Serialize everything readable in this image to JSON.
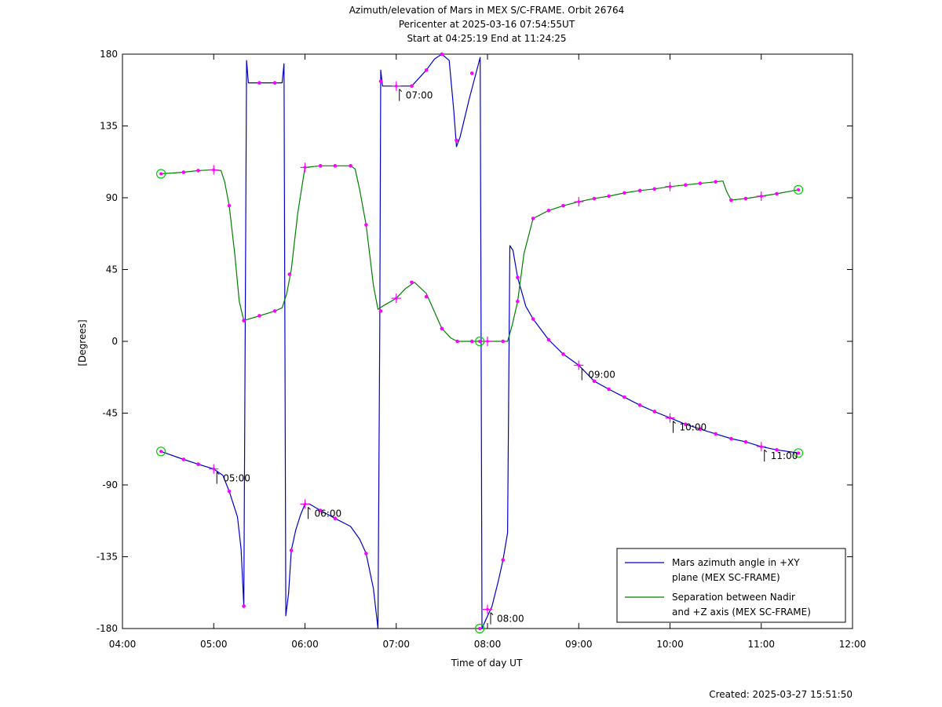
{
  "chart_data": {
    "type": "line",
    "title": [
      "Azimuth/elevation of Mars in MEX S/C-FRAME.  Orbit 26764",
      "Pericenter at 2025-03-16 07:54:55UT",
      "Start at 04:25:19 End at 11:24:25"
    ],
    "xlabel": "Time of day UT",
    "ylabel": "[Degrees]",
    "xlim": [
      4.0,
      12.0
    ],
    "ylim": [
      -180,
      180
    ],
    "x_ticks": [
      {
        "v": 4,
        "label": "04:00"
      },
      {
        "v": 5,
        "label": "05:00"
      },
      {
        "v": 6,
        "label": "06:00"
      },
      {
        "v": 7,
        "label": "07:00"
      },
      {
        "v": 8,
        "label": "08:00"
      },
      {
        "v": 9,
        "label": "09:00"
      },
      {
        "v": 10,
        "label": "10:00"
      },
      {
        "v": 11,
        "label": "11:00"
      },
      {
        "v": 12,
        "label": "12:00"
      }
    ],
    "y_ticks": [
      {
        "v": 180,
        "label": "180"
      },
      {
        "v": 135,
        "label": "135"
      },
      {
        "v": 90,
        "label": "90"
      },
      {
        "v": 45,
        "label": "45"
      },
      {
        "v": 0,
        "label": "0"
      },
      {
        "v": -45,
        "label": "-45"
      },
      {
        "v": -90,
        "label": "-90"
      },
      {
        "v": -135,
        "label": "-135"
      },
      {
        "v": -180,
        "label": "-180"
      }
    ],
    "legend": {
      "placement": "bottom-right",
      "entries": [
        {
          "lines": [
            "Mars azimuth angle in +XY",
            "plane (MEX SC-FRAME)"
          ],
          "color": "#0000cc"
        },
        {
          "lines": [
            "Separation between Nadir",
            "and +Z axis (MEX SC-FRAME)"
          ],
          "color": "#008000"
        }
      ]
    },
    "series": [
      {
        "color": "#0000cc",
        "points": [
          [
            4.422,
            -69
          ],
          [
            4.67,
            -74
          ],
          [
            4.83,
            -77
          ],
          [
            5.0,
            -80
          ],
          [
            5.1,
            -84
          ],
          [
            5.17,
            -94
          ],
          [
            5.26,
            -110
          ],
          [
            5.3,
            -130
          ],
          [
            5.33,
            -166
          ],
          [
            5.345,
            10
          ],
          [
            5.36,
            176
          ],
          [
            5.38,
            162
          ],
          [
            5.5,
            162
          ],
          [
            5.67,
            162
          ],
          [
            5.75,
            162
          ],
          [
            5.77,
            174
          ],
          [
            5.78,
            10
          ],
          [
            5.79,
            -172
          ],
          [
            5.82,
            -158
          ],
          [
            5.85,
            -131
          ],
          [
            5.9,
            -118
          ],
          [
            5.95,
            -109
          ],
          [
            6.0,
            -102
          ],
          [
            6.05,
            -102
          ],
          [
            6.17,
            -106
          ],
          [
            6.33,
            -111
          ],
          [
            6.5,
            -116
          ],
          [
            6.6,
            -124
          ],
          [
            6.67,
            -133
          ],
          [
            6.75,
            -155
          ],
          [
            6.8,
            -180
          ],
          [
            6.82,
            10
          ],
          [
            6.83,
            170
          ],
          [
            6.85,
            160
          ],
          [
            7.0,
            160
          ],
          [
            7.17,
            160
          ],
          [
            7.33,
            170
          ],
          [
            7.42,
            177
          ],
          [
            7.5,
            180
          ],
          [
            7.58,
            176
          ],
          [
            7.63,
            145
          ],
          [
            7.66,
            122
          ],
          [
            7.7,
            128
          ],
          [
            7.8,
            152
          ],
          [
            7.92,
            178
          ],
          [
            7.93,
            0
          ],
          [
            7.94,
            -180
          ],
          [
            7.97,
            -176
          ],
          [
            8.05,
            -166
          ],
          [
            8.12,
            -150
          ],
          [
            8.17,
            -137
          ],
          [
            8.22,
            -120
          ],
          [
            8.245,
            60
          ],
          [
            8.28,
            57
          ],
          [
            8.33,
            40
          ],
          [
            8.42,
            22
          ],
          [
            8.5,
            14
          ],
          [
            8.67,
            1
          ],
          [
            8.83,
            -8
          ],
          [
            9.0,
            -15
          ],
          [
            9.17,
            -25
          ],
          [
            9.33,
            -30
          ],
          [
            9.5,
            -35
          ],
          [
            9.67,
            -40
          ],
          [
            9.83,
            -44
          ],
          [
            10.0,
            -48
          ],
          [
            10.17,
            -52
          ],
          [
            10.33,
            -55
          ],
          [
            10.5,
            -58
          ],
          [
            10.67,
            -61
          ],
          [
            10.83,
            -63
          ],
          [
            11.0,
            -66
          ],
          [
            11.17,
            -68
          ],
          [
            11.407,
            -70
          ]
        ],
        "markers": [
          {
            "x": 4.422,
            "y": -69,
            "type": "circle"
          },
          {
            "x": 4.67,
            "y": -74,
            "type": "dot"
          },
          {
            "x": 4.83,
            "y": -77,
            "type": "dot"
          },
          {
            "x": 5.0,
            "y": -80,
            "type": "plus"
          },
          {
            "x": 5.17,
            "y": -94,
            "type": "dot"
          },
          {
            "x": 5.33,
            "y": -166,
            "type": "dot"
          },
          {
            "x": 5.5,
            "y": 162,
            "type": "dot"
          },
          {
            "x": 5.67,
            "y": 162,
            "type": "dot"
          },
          {
            "x": 5.85,
            "y": -131,
            "type": "dot"
          },
          {
            "x": 6.0,
            "y": -102,
            "type": "plus"
          },
          {
            "x": 6.17,
            "y": -106,
            "type": "dot"
          },
          {
            "x": 6.33,
            "y": -111,
            "type": "dot"
          },
          {
            "x": 6.67,
            "y": -133,
            "type": "dot"
          },
          {
            "x": 6.83,
            "y": 163,
            "type": "dot"
          },
          {
            "x": 7.0,
            "y": 160,
            "type": "plus"
          },
          {
            "x": 7.17,
            "y": 160,
            "type": "dot"
          },
          {
            "x": 7.33,
            "y": 170,
            "type": "dot"
          },
          {
            "x": 7.5,
            "y": 180,
            "type": "dot"
          },
          {
            "x": 7.66,
            "y": 126,
            "type": "dot"
          },
          {
            "x": 7.83,
            "y": 168,
            "type": "dot"
          },
          {
            "x": 7.915,
            "y": -180,
            "type": "circle"
          },
          {
            "x": 8.0,
            "y": -168,
            "type": "plus"
          },
          {
            "x": 8.17,
            "y": -137,
            "type": "dot"
          },
          {
            "x": 8.33,
            "y": 40,
            "type": "dot"
          },
          {
            "x": 8.5,
            "y": 14,
            "type": "dot"
          },
          {
            "x": 8.67,
            "y": 1,
            "type": "dot"
          },
          {
            "x": 8.83,
            "y": -8,
            "type": "dot"
          },
          {
            "x": 9.0,
            "y": -15,
            "type": "plus"
          },
          {
            "x": 9.17,
            "y": -25,
            "type": "dot"
          },
          {
            "x": 9.33,
            "y": -30,
            "type": "dot"
          },
          {
            "x": 9.5,
            "y": -35,
            "type": "dot"
          },
          {
            "x": 9.67,
            "y": -40,
            "type": "dot"
          },
          {
            "x": 9.83,
            "y": -44,
            "type": "dot"
          },
          {
            "x": 10.0,
            "y": -48,
            "type": "plus"
          },
          {
            "x": 10.17,
            "y": -52,
            "type": "dot"
          },
          {
            "x": 10.33,
            "y": -55,
            "type": "dot"
          },
          {
            "x": 10.5,
            "y": -58,
            "type": "dot"
          },
          {
            "x": 10.67,
            "y": -61,
            "type": "dot"
          },
          {
            "x": 10.83,
            "y": -63,
            "type": "dot"
          },
          {
            "x": 11.0,
            "y": -66,
            "type": "plus"
          },
          {
            "x": 11.17,
            "y": -68,
            "type": "dot"
          },
          {
            "x": 11.407,
            "y": -70,
            "type": "circle"
          }
        ],
        "time_labels": [
          {
            "x": 5.0,
            "y": -80,
            "label": "05:00"
          },
          {
            "x": 6.0,
            "y": -102,
            "label": "06:00"
          },
          {
            "x": 7.0,
            "y": 160,
            "label": "07:00"
          },
          {
            "x": 8.0,
            "y": -168,
            "label": "08:00"
          },
          {
            "x": 9.0,
            "y": -15,
            "label": "09:00"
          },
          {
            "x": 10.0,
            "y": -48,
            "label": "10:00"
          },
          {
            "x": 11.0,
            "y": -66,
            "label": "11:00"
          }
        ]
      },
      {
        "color": "#008000",
        "points": [
          [
            4.422,
            105
          ],
          [
            4.67,
            106
          ],
          [
            4.83,
            107
          ],
          [
            5.0,
            107.5
          ],
          [
            5.08,
            107
          ],
          [
            5.12,
            100
          ],
          [
            5.17,
            85
          ],
          [
            5.23,
            55
          ],
          [
            5.28,
            25
          ],
          [
            5.33,
            13
          ],
          [
            5.5,
            16
          ],
          [
            5.67,
            19
          ],
          [
            5.75,
            21
          ],
          [
            5.8,
            30
          ],
          [
            5.85,
            45
          ],
          [
            5.92,
            80
          ],
          [
            6.0,
            109
          ],
          [
            6.17,
            110
          ],
          [
            6.33,
            110
          ],
          [
            6.5,
            110
          ],
          [
            6.55,
            108
          ],
          [
            6.6,
            95
          ],
          [
            6.67,
            73
          ],
          [
            6.75,
            35
          ],
          [
            6.8,
            20
          ],
          [
            6.85,
            22
          ],
          [
            7.0,
            27
          ],
          [
            7.1,
            33
          ],
          [
            7.2,
            37
          ],
          [
            7.33,
            30
          ],
          [
            7.5,
            8
          ],
          [
            7.6,
            2
          ],
          [
            7.67,
            0
          ],
          [
            7.83,
            0
          ],
          [
            7.915,
            0
          ],
          [
            8.0,
            0
          ],
          [
            8.17,
            0
          ],
          [
            8.22,
            0
          ],
          [
            8.27,
            10
          ],
          [
            8.33,
            25
          ],
          [
            8.4,
            55
          ],
          [
            8.5,
            77
          ],
          [
            8.67,
            82
          ],
          [
            8.83,
            85
          ],
          [
            9.0,
            87.5
          ],
          [
            9.17,
            89.5
          ],
          [
            9.33,
            91
          ],
          [
            9.5,
            93
          ],
          [
            9.67,
            94.5
          ],
          [
            9.83,
            95.5
          ],
          [
            10.0,
            97
          ],
          [
            10.17,
            98
          ],
          [
            10.33,
            99
          ],
          [
            10.5,
            100
          ],
          [
            10.58,
            100.5
          ],
          [
            10.62,
            94
          ],
          [
            10.67,
            88.5
          ],
          [
            10.83,
            89.5
          ],
          [
            11.0,
            91
          ],
          [
            11.17,
            92.5
          ],
          [
            11.407,
            95
          ]
        ],
        "markers": [
          {
            "x": 4.422,
            "y": 105,
            "type": "circle"
          },
          {
            "x": 4.67,
            "y": 106,
            "type": "dot"
          },
          {
            "x": 4.83,
            "y": 107,
            "type": "dot"
          },
          {
            "x": 5.0,
            "y": 107.5,
            "type": "plus"
          },
          {
            "x": 5.17,
            "y": 85,
            "type": "dot"
          },
          {
            "x": 5.33,
            "y": 13,
            "type": "dot"
          },
          {
            "x": 5.5,
            "y": 16,
            "type": "dot"
          },
          {
            "x": 5.67,
            "y": 19,
            "type": "dot"
          },
          {
            "x": 5.83,
            "y": 42,
            "type": "dot"
          },
          {
            "x": 6.0,
            "y": 109,
            "type": "plus"
          },
          {
            "x": 6.17,
            "y": 110,
            "type": "dot"
          },
          {
            "x": 6.33,
            "y": 110,
            "type": "dot"
          },
          {
            "x": 6.5,
            "y": 110,
            "type": "dot"
          },
          {
            "x": 6.67,
            "y": 73,
            "type": "dot"
          },
          {
            "x": 6.83,
            "y": 19,
            "type": "dot"
          },
          {
            "x": 7.0,
            "y": 27,
            "type": "plus"
          },
          {
            "x": 7.17,
            "y": 37,
            "type": "dot"
          },
          {
            "x": 7.33,
            "y": 28,
            "type": "dot"
          },
          {
            "x": 7.5,
            "y": 8,
            "type": "dot"
          },
          {
            "x": 7.67,
            "y": 0,
            "type": "dot"
          },
          {
            "x": 7.83,
            "y": 0,
            "type": "dot"
          },
          {
            "x": 7.915,
            "y": 0,
            "type": "circle"
          },
          {
            "x": 8.0,
            "y": 0,
            "type": "plus"
          },
          {
            "x": 8.17,
            "y": 0,
            "type": "dot"
          },
          {
            "x": 8.33,
            "y": 25,
            "type": "dot"
          },
          {
            "x": 8.5,
            "y": 77,
            "type": "dot"
          },
          {
            "x": 8.67,
            "y": 82,
            "type": "dot"
          },
          {
            "x": 8.83,
            "y": 85,
            "type": "dot"
          },
          {
            "x": 9.0,
            "y": 87.5,
            "type": "plus"
          },
          {
            "x": 9.17,
            "y": 89.5,
            "type": "dot"
          },
          {
            "x": 9.33,
            "y": 91,
            "type": "dot"
          },
          {
            "x": 9.5,
            "y": 93,
            "type": "dot"
          },
          {
            "x": 9.67,
            "y": 94.5,
            "type": "dot"
          },
          {
            "x": 9.83,
            "y": 95.5,
            "type": "dot"
          },
          {
            "x": 10.0,
            "y": 97,
            "type": "plus"
          },
          {
            "x": 10.17,
            "y": 98,
            "type": "dot"
          },
          {
            "x": 10.33,
            "y": 99,
            "type": "dot"
          },
          {
            "x": 10.5,
            "y": 100,
            "type": "dot"
          },
          {
            "x": 10.67,
            "y": 88.5,
            "type": "dot"
          },
          {
            "x": 10.83,
            "y": 89.5,
            "type": "dot"
          },
          {
            "x": 11.0,
            "y": 91,
            "type": "plus"
          },
          {
            "x": 11.17,
            "y": 92.5,
            "type": "dot"
          },
          {
            "x": 11.407,
            "y": 95,
            "type": "circle"
          }
        ]
      }
    ],
    "marker_colors": {
      "dot": "#ff00ff",
      "plus": "#ff00ff",
      "circle": "#00cc00"
    },
    "footer": "Created: 2025-03-27 15:51:50"
  }
}
